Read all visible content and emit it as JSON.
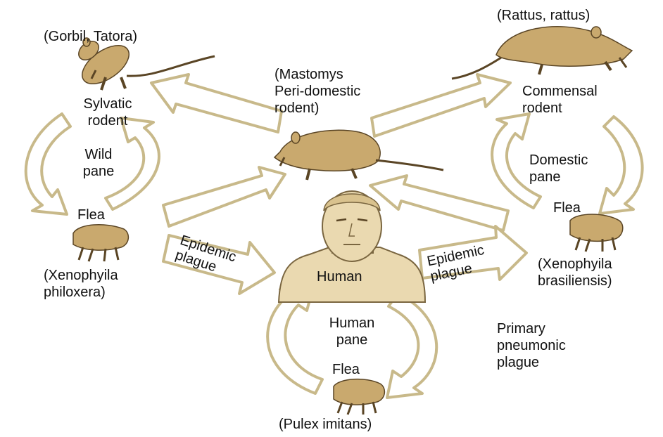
{
  "colors": {
    "arrow_fill": "#ffffff",
    "arrow_stroke": "#c8b98a",
    "animal_fill": "#c9a96e",
    "animal_stroke": "#5a4525",
    "human_skin": "#ead9b0",
    "human_stroke": "#7a6640",
    "text": "#111111"
  },
  "labels": {
    "gorbil": "(Gorbil, Tatora)",
    "sylvatic": "Sylvatic\nrodent",
    "wild_pane": "Wild\npane",
    "flea_left": "Flea",
    "xeno_phil": "(Xenophyila\nphiloxera)",
    "epidemic_left": "Epidemic\nplague",
    "mastomys": "(Mastomys\nPeri-domestic\nrodent)",
    "rattus": "(Rattus, rattus)",
    "commensal": "Commensal\nrodent",
    "domestic_pane": "Domestic\npane",
    "flea_right": "Flea",
    "xeno_bras": "(Xenophyila\nbrasiliensis)",
    "epidemic_right": "Epidemic\nplague",
    "human": "Human",
    "human_pane": "Human\npane",
    "flea_bottom": "Flea",
    "pulex": "(Pulex imitans)",
    "pneumonic": "Primary\npneumonic\nplague"
  }
}
